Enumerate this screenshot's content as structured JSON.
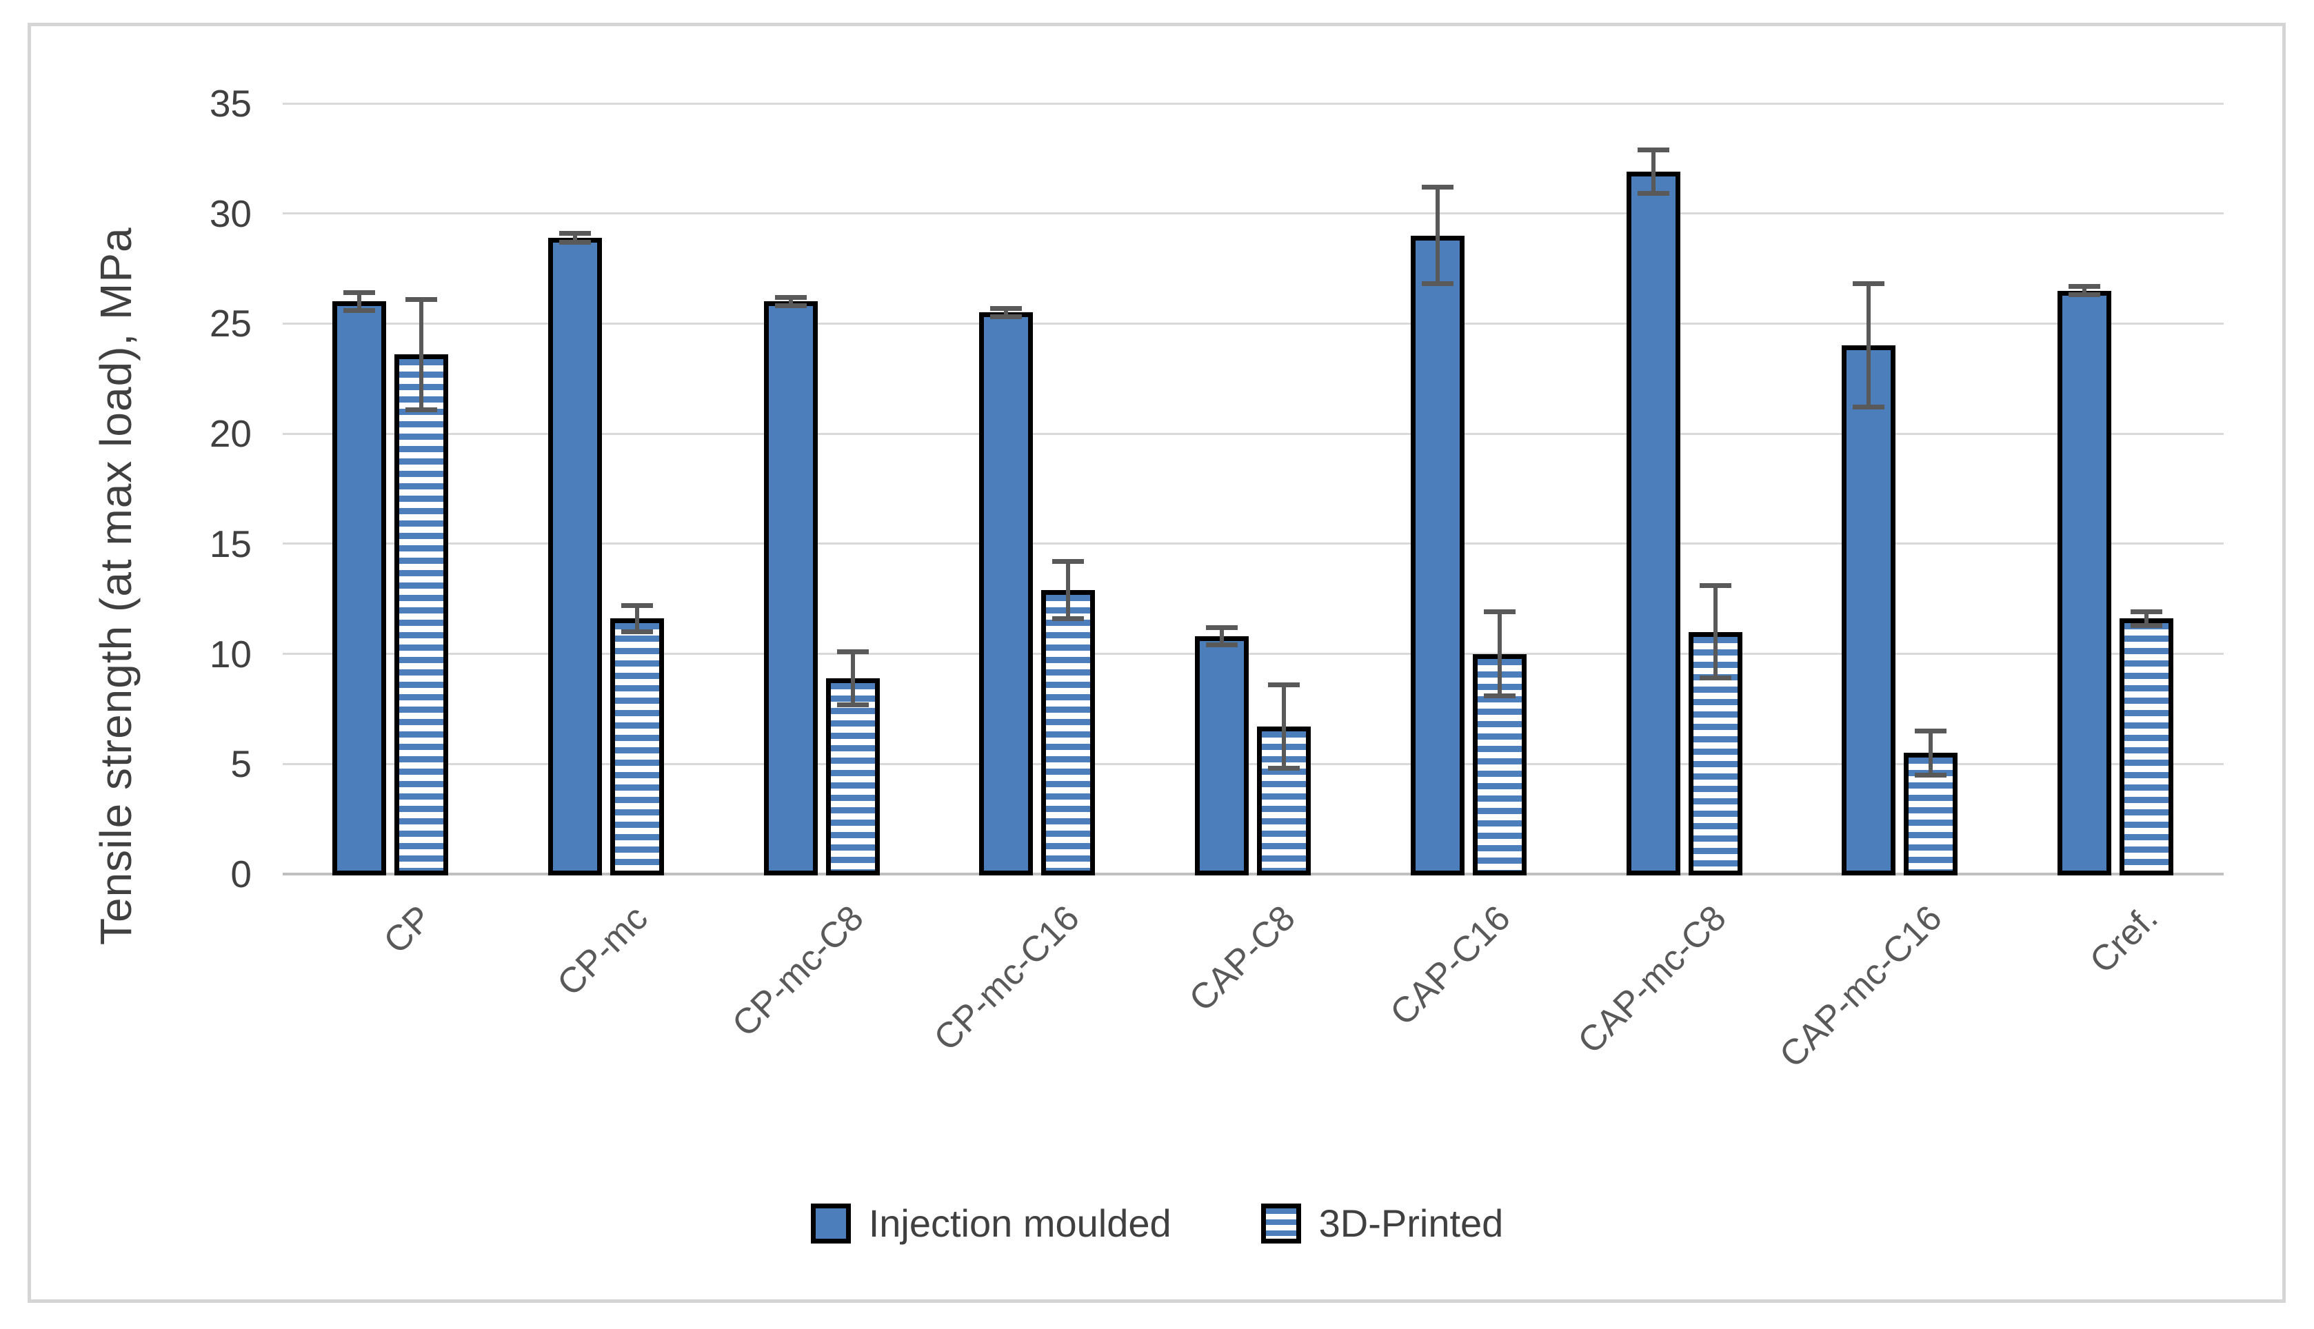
{
  "chart_data": {
    "type": "bar",
    "title": "",
    "xlabel": "",
    "ylabel": "Tensile strength (at max load), MPa",
    "ylim": [
      0,
      35
    ],
    "ytick_interval": 5,
    "ytick_labels": [
      "0",
      "5",
      "10",
      "15",
      "20",
      "25",
      "30",
      "35"
    ],
    "grid": true,
    "legend_position": "bottom-center",
    "categories": [
      "CP",
      "CP-mc",
      "CP-mc-C8",
      "CP-mc-C16",
      "CAP-C8",
      "CAP-C16",
      "CAP-mc-C8",
      "CAP-mc-C16",
      "Cref."
    ],
    "series": [
      {
        "name": "Injection moulded",
        "style": "solid",
        "values": [
          26.0,
          28.9,
          26.0,
          25.5,
          10.8,
          29.0,
          31.9,
          24.0,
          26.5
        ],
        "errors": [
          0.4,
          0.2,
          0.2,
          0.2,
          0.4,
          2.2,
          1.0,
          2.8,
          0.2
        ]
      },
      {
        "name": "3D-Printed",
        "style": "striped",
        "values": [
          23.6,
          11.6,
          8.9,
          12.9,
          6.7,
          10.0,
          11.0,
          5.5,
          11.6
        ],
        "errors": [
          2.5,
          0.6,
          1.2,
          1.3,
          1.9,
          1.9,
          2.1,
          1.0,
          0.3
        ]
      }
    ],
    "colors": {
      "bar_fill": "#4D7EBC",
      "bar_border": "#000000",
      "stripe_background": "#FFFFFF",
      "error_bar": "#595959",
      "gridline": "#D9D9D9",
      "axis_line": "#BFBFBF",
      "tick_text": "#404040",
      "category_text": "#595959",
      "frame_border": "#D5D5D5"
    }
  }
}
